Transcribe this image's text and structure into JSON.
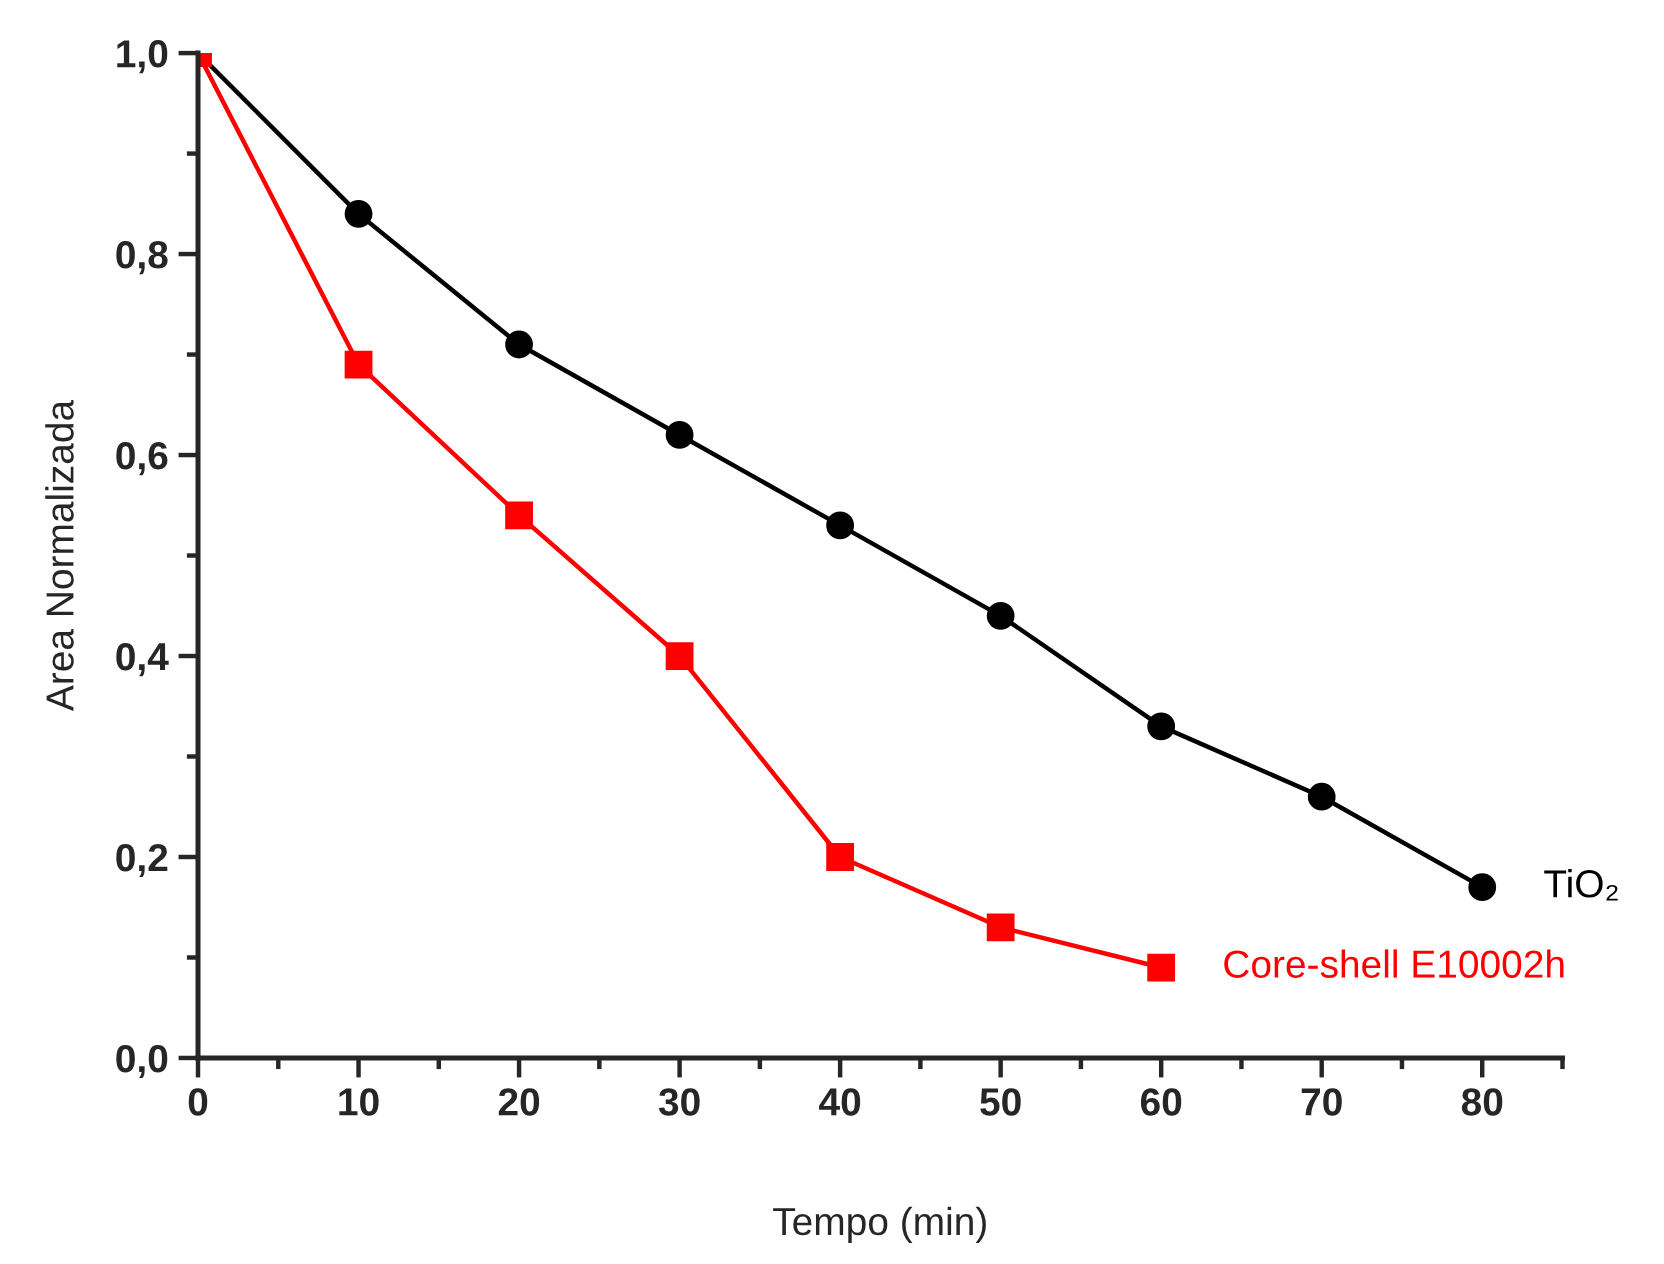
{
  "chart_data": {
    "type": "line",
    "xlabel": "Tempo (min)",
    "ylabel": "Area Normalizada",
    "xlim": [
      0,
      85
    ],
    "xticks": [
      {
        "value": 0,
        "label": "0"
      },
      {
        "value": 10,
        "label": "10"
      },
      {
        "value": 20,
        "label": "20"
      },
      {
        "value": 30,
        "label": "30"
      },
      {
        "value": 40,
        "label": "40"
      },
      {
        "value": 50,
        "label": "50"
      },
      {
        "value": 60,
        "label": "60"
      },
      {
        "value": 70,
        "label": "70"
      },
      {
        "value": 80,
        "label": "80"
      }
    ],
    "ylim": [
      0,
      1.0
    ],
    "yticks": [
      {
        "value": 0,
        "label": "0,0"
      },
      {
        "value": 0.2,
        "label": "0,2"
      },
      {
        "value": 0.4,
        "label": "0,4"
      },
      {
        "value": 0.6,
        "label": "0,6"
      },
      {
        "value": 0.8,
        "label": "0,8"
      },
      {
        "value": 1.0,
        "label": "1,0"
      }
    ],
    "grid": false,
    "legend": false,
    "series": [
      {
        "name": "TiO₂",
        "color": "#000000",
        "marker": "circle",
        "x": [
          0,
          10,
          20,
          30,
          40,
          50,
          60,
          70,
          80
        ],
        "values": [
          1.0,
          0.84,
          0.71,
          0.62,
          0.53,
          0.44,
          0.33,
          0.26,
          0.17
        ]
      },
      {
        "name": "Core-shell E10002h",
        "color": "#ff0000",
        "marker": "square",
        "x": [
          0,
          10,
          20,
          30,
          40,
          50,
          60
        ],
        "values": [
          1.0,
          0.69,
          0.54,
          0.4,
          0.2,
          0.13,
          0.09
        ]
      }
    ]
  }
}
